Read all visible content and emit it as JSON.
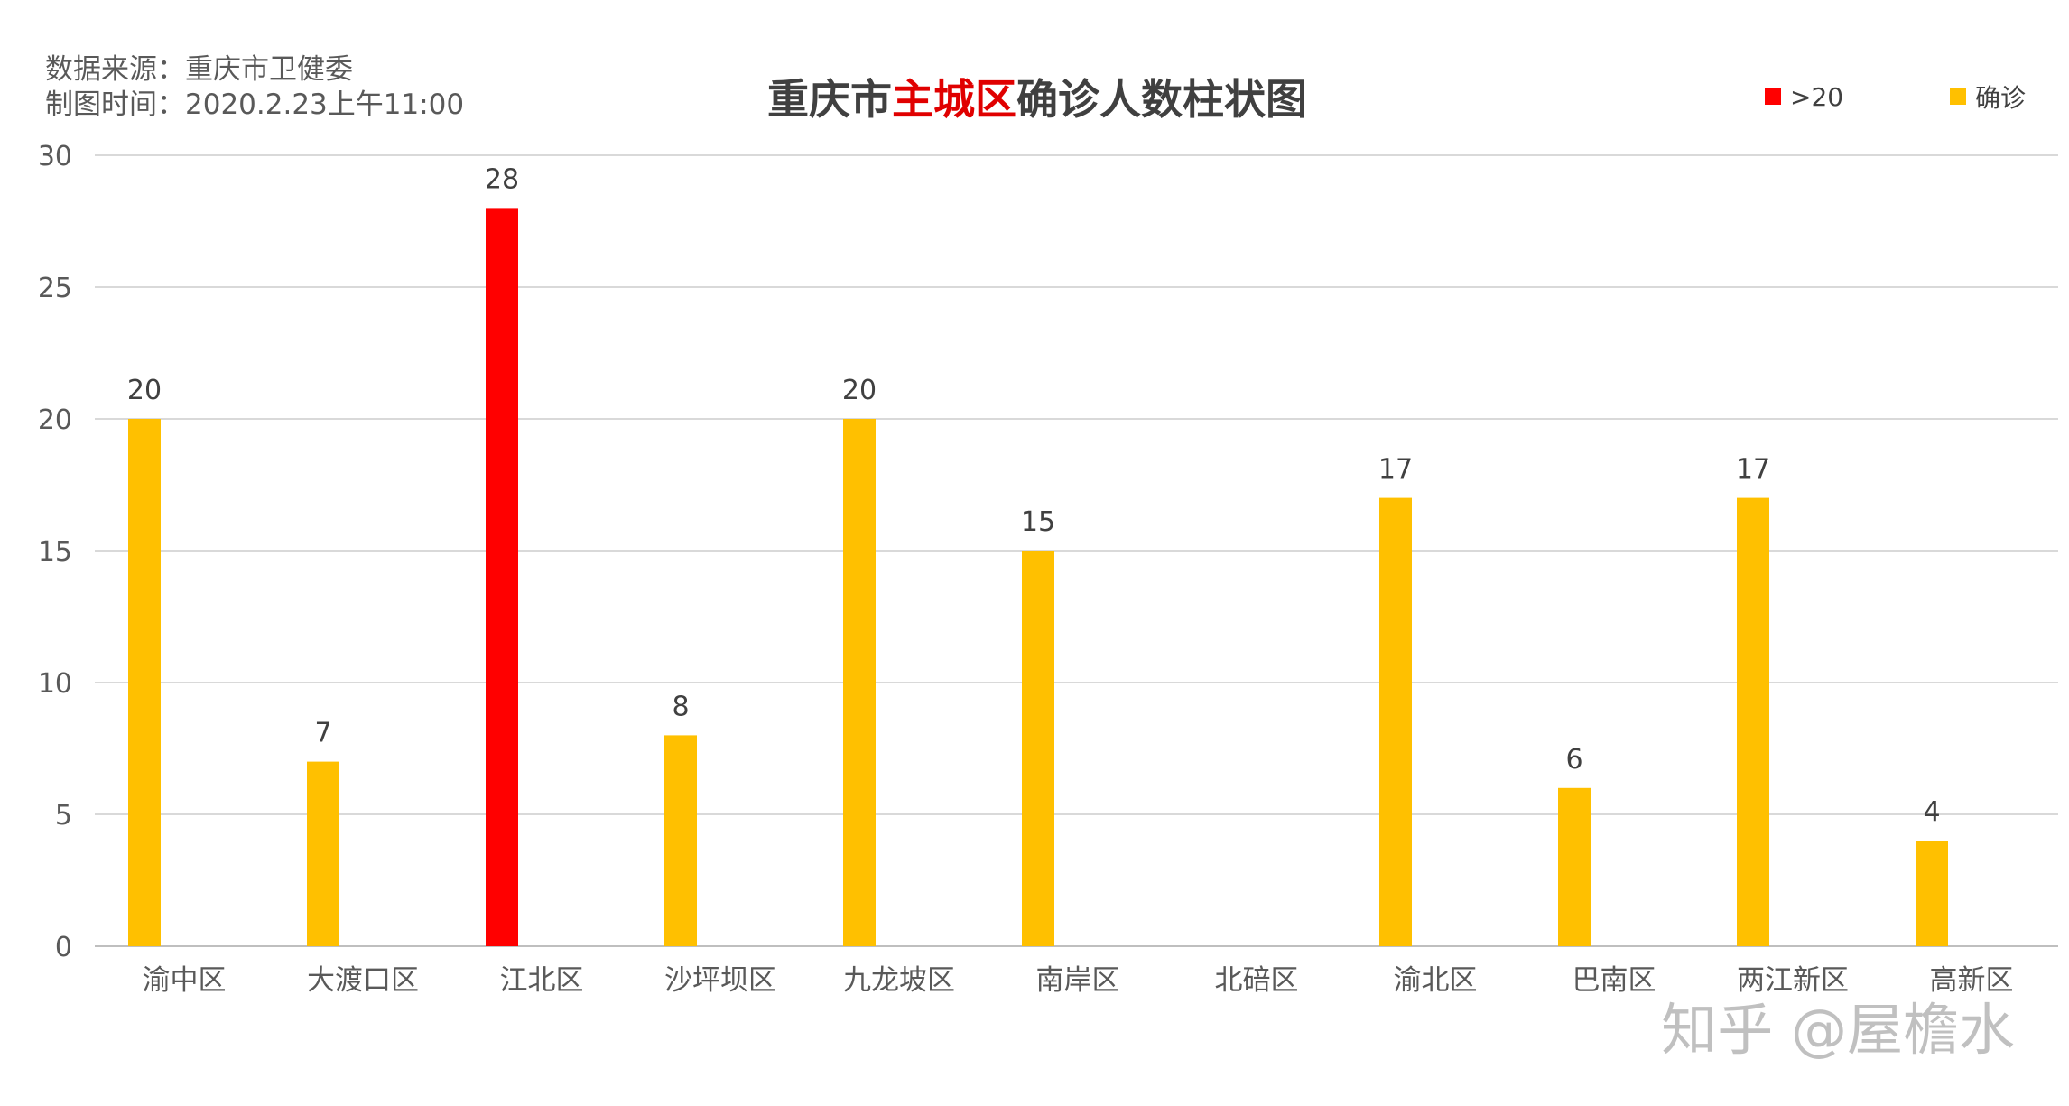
{
  "source": {
    "line1": "数据来源：重庆市卫健委",
    "line2": "制图时间：2020.2.23上午11:00"
  },
  "title": {
    "part1": "重庆市",
    "part2": "主城区",
    "part3": "确诊人数柱状图"
  },
  "watermark": "知乎 @屋檐水",
  "colors": {
    "highlight": "#ff0000",
    "normal": "#ffc000",
    "title_highlight": "#e00000",
    "grid": "#d9d9d9",
    "axis_text": "#595959"
  },
  "chart_data": {
    "type": "bar",
    "categories": [
      "渝中区",
      "大渡口区",
      "江北区",
      "沙坪坝区",
      "九龙坡区",
      "南岸区",
      "北碚区",
      "渝北区",
      "巴南区",
      "两江新区",
      "高新区"
    ],
    "series": [
      {
        "name": ">20",
        "color": "#ff0000",
        "values": [
          null,
          null,
          28,
          null,
          null,
          null,
          null,
          null,
          null,
          null,
          null
        ]
      },
      {
        "name": "确诊",
        "color": "#ffc000",
        "values": [
          20,
          7,
          null,
          8,
          20,
          15,
          null,
          17,
          6,
          17,
          4
        ]
      }
    ],
    "data_labels": [
      "20",
      "7",
      "28",
      "8",
      "20",
      "15",
      "",
      "17",
      "6",
      "17",
      "4"
    ],
    "ylim": [
      0,
      30
    ],
    "yticks": [
      0,
      5,
      10,
      15,
      20,
      25,
      30
    ],
    "grid": true,
    "legend_position": "top-right"
  }
}
